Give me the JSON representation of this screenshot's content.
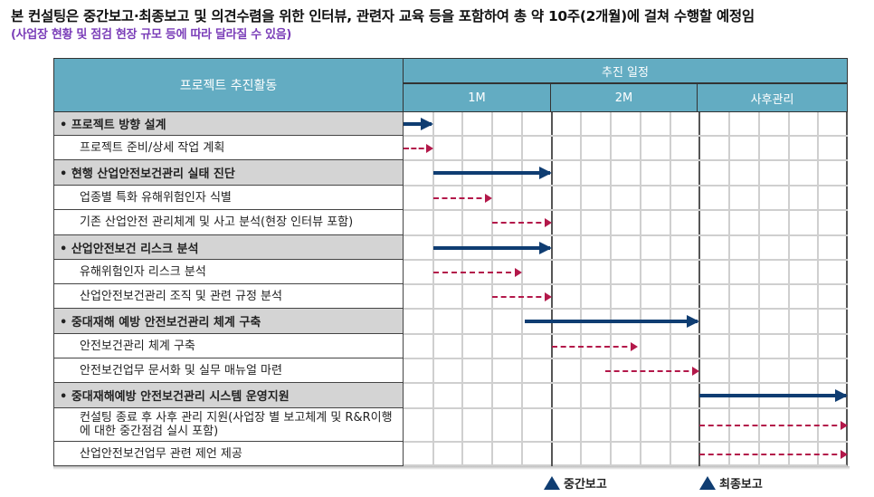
{
  "header": {
    "title": "본 컨설팅은 중간보고·최종보고 및 의견수렴을 위한 인터뷰, 관련자 교육 등을 포함하여 총 약 10주(2개월)에 걸쳐 수행할 예정임",
    "subtitle": "(사업장 현황 및 점검 현장 규모 등에 따라 달라질 수 있음)"
  },
  "table": {
    "activity_header": "프로젝트 추진활동",
    "schedule_header": "추진 일정",
    "periods": [
      {
        "label": "1M",
        "columns": 5
      },
      {
        "label": "2M",
        "columns": 5
      },
      {
        "label": "사후관리",
        "columns": 5
      }
    ],
    "rows": [
      {
        "type": "phase",
        "label": "• 프로젝트 방향 설계"
      },
      {
        "type": "task",
        "label": "프로젝트 준비/상세 작업 계획"
      },
      {
        "type": "phase",
        "label": "• 현행 산업안전보건관리 실태 진단"
      },
      {
        "type": "task",
        "label": "업종별 특화 유해위험인자 식별"
      },
      {
        "type": "task",
        "label": "기존 산업안전 관리체계 및 사고 분석(현장 인터뷰 포함)"
      },
      {
        "type": "phase",
        "label": "• 산업안전보건 리스크 분석"
      },
      {
        "type": "task",
        "label": "유해위험인자 리스크 분석"
      },
      {
        "type": "task",
        "label": "산업안전보건관리 조직 및 관련 규정 분석"
      },
      {
        "type": "phase",
        "label": "• 중대재해 예방 안전보건관리 체계 구축"
      },
      {
        "type": "task",
        "label": "안전보건관리 체계 구축"
      },
      {
        "type": "task",
        "label": "안전보건업무 문서화 및 실무 매뉴얼 마련"
      },
      {
        "type": "phase",
        "label": "• 중대재해예방 안전보건관리 시스템 운영지원"
      },
      {
        "type": "task",
        "label": "컨설팅 종료 후 사후 관리 지원(사업장 별 보고체계 및 R&R이행에 대한 중간점검 실시 포함)"
      },
      {
        "type": "task",
        "label": "산업안전보건업무 관련 제언 제공"
      }
    ]
  },
  "milestones": [
    {
      "label": "중간보고",
      "column": 5
    },
    {
      "label": "최종보고",
      "column": 10
    }
  ],
  "colors": {
    "header_bg": "#63acc2",
    "phase_bg": "#d4d4d4",
    "phase_bar": "#0f3d72",
    "task_bar": "#b3184a",
    "subtitle": "#7a3db8"
  },
  "chart_data": {
    "type": "gantt",
    "title": "프로젝트 추진 일정",
    "x_units": "week-columns (15 total: 1M=0-5, 2M=5-10, 사후관리=10-15)",
    "categories": [
      "1M",
      "2M",
      "사후관리"
    ],
    "series": [
      {
        "name": "• 프로젝트 방향 설계",
        "kind": "phase",
        "start": 0,
        "end": 1
      },
      {
        "name": "프로젝트 준비/상세 작업 계획",
        "kind": "task",
        "start": 0,
        "end": 1
      },
      {
        "name": "• 현행 산업안전보건관리 실태 진단",
        "kind": "phase",
        "start": 1,
        "end": 5
      },
      {
        "name": "업종별 특화 유해위험인자 식별",
        "kind": "task",
        "start": 1,
        "end": 3
      },
      {
        "name": "기존 산업안전 관리체계 및 사고 분석(현장 인터뷰 포함)",
        "kind": "task",
        "start": 3,
        "end": 5
      },
      {
        "name": "• 산업안전보건 리스크 분석",
        "kind": "phase",
        "start": 1,
        "end": 5
      },
      {
        "name": "유해위험인자 리스크 분석",
        "kind": "task",
        "start": 1,
        "end": 4
      },
      {
        "name": "산업안전보건관리 조직 및 관련 규정 분석",
        "kind": "task",
        "start": 3,
        "end": 5
      },
      {
        "name": "• 중대재해 예방 안전보건관리 체계 구축",
        "kind": "phase",
        "start": 4.1,
        "end": 10
      },
      {
        "name": "안전보건관리 체계 구축",
        "kind": "task",
        "start": 5,
        "end": 7.9
      },
      {
        "name": "안전보건업무 문서화 및 실무 매뉴얼 마련",
        "kind": "task",
        "start": 6.8,
        "end": 10
      },
      {
        "name": "• 중대재해예방 안전보건관리 시스템 운영지원",
        "kind": "phase",
        "start": 10,
        "end": 15
      },
      {
        "name": "컨설팅 종료 후 사후 관리 지원(사업장 별 보고체계 및 R&R이행에 대한 중간점검 실시 포함)",
        "kind": "task",
        "start": 10,
        "end": 15
      },
      {
        "name": "산업안전보건업무 관련 제언 제공",
        "kind": "task",
        "start": 10,
        "end": 15
      }
    ],
    "milestones": [
      {
        "label": "중간보고",
        "at": 5
      },
      {
        "label": "최종보고",
        "at": 10
      }
    ],
    "legend": [
      "Phase (solid navy arrow)",
      "Task (dashed crimson arrow)"
    ],
    "grid": true
  }
}
